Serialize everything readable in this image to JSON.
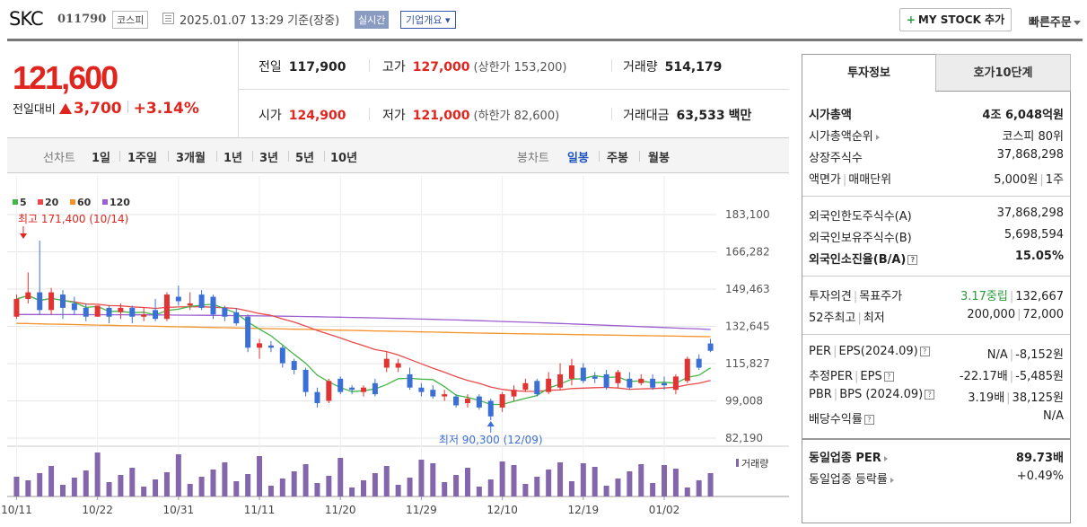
{
  "header": {
    "name": "SKC",
    "code": "011790",
    "market": "코스피",
    "date": "2025.01.07 13:29  기준(장중)",
    "realtime": "실시간",
    "company_overview": "기업개요 ▾",
    "my_stock": "MY STOCK 추가",
    "my_stock_plus": "+",
    "quick_order": "빠른주문"
  },
  "price": {
    "current": "121,600",
    "change_label": "전일대비",
    "change_value": "3,700",
    "change_pct": "+3.14%"
  },
  "stats": {
    "prev_close_label": "전일",
    "prev_close": "117,900",
    "high_label": "고가",
    "high": "127,000",
    "upper_limit": "(상한가 153,200)",
    "volume_label": "거래량",
    "volume": "514,179",
    "open_label": "시가",
    "open": "124,900",
    "low_label": "저가",
    "low": "121,000",
    "lower_limit": "(하한가 82,600)",
    "amount_label": "거래대금",
    "amount": "63,533",
    "amount_unit": "백만"
  },
  "period_bar": {
    "line_label": "선차트",
    "line_periods": [
      "1일",
      "1주일",
      "3개월",
      "1년",
      "3년",
      "5년",
      "10년"
    ],
    "candle_label": "봉차트",
    "candle_periods": [
      "일봉",
      "주봉",
      "월봉"
    ],
    "active_candle": "일봉"
  },
  "chart_data": {
    "type": "candlestick",
    "legend": [
      {
        "name": "5",
        "color": "#44b548"
      },
      {
        "name": "20",
        "color": "#e84a4a"
      },
      {
        "name": "60",
        "color": "#f5932a"
      },
      {
        "name": "120",
        "color": "#9d5fd0"
      }
    ],
    "y_ticks": [
      "183,100",
      "166,282",
      "149,463",
      "132,645",
      "115,827",
      "99,008",
      "82,190"
    ],
    "ylim": [
      82190,
      183100
    ],
    "x_ticks": [
      "10/11",
      "10/22",
      "10/31",
      "11/11",
      "11/20",
      "11/29",
      "12/10",
      "12/19",
      "01/02"
    ],
    "high_annotation": "최고 171,400 (10/14)",
    "low_annotation": "최저 90,300 (12/09)",
    "volume_label": "거래량",
    "candles": [
      [
        137000,
        145000,
        136000,
        147000
      ],
      [
        145000,
        148000,
        143000,
        157000
      ],
      [
        148000,
        140000,
        138000,
        171400
      ],
      [
        140000,
        148000,
        138000,
        150000
      ],
      [
        147000,
        141000,
        136000,
        149000
      ],
      [
        143000,
        140000,
        138000,
        146000
      ],
      [
        141000,
        137000,
        135000,
        143000
      ],
      [
        137000,
        142000
      ],
      [
        141000,
        137000,
        134000,
        142000
      ],
      [
        139000,
        141000,
        136000,
        143000
      ],
      [
        141000,
        137000,
        134000,
        142000
      ],
      [
        137000,
        138000,
        135000,
        141000
      ],
      [
        140000,
        136000,
        135000,
        145000
      ],
      [
        136000,
        147000,
        135000,
        148000
      ],
      [
        146000,
        144000,
        142000,
        151000
      ],
      [
        142000,
        143000,
        140000,
        148000
      ],
      [
        147000,
        141000,
        140000,
        149000
      ],
      [
        146000,
        138000,
        136000,
        147000
      ],
      [
        141000,
        137000,
        135000,
        142000
      ],
      [
        139000,
        134000,
        133000,
        141000
      ],
      [
        137000,
        123000,
        121000,
        138000
      ],
      [
        123000,
        125000,
        118000,
        127000
      ],
      [
        124000,
        123000,
        121000,
        126000
      ],
      [
        123000,
        116000,
        114000,
        124000
      ],
      [
        117000,
        113000,
        111000,
        118000
      ],
      [
        113000,
        103000,
        101000,
        114000
      ],
      [
        103000,
        98000,
        96000,
        105000
      ],
      [
        99000,
        108000,
        98000,
        109000
      ],
      [
        109000,
        103000,
        102000,
        110000
      ],
      [
        105000,
        104000,
        102000,
        106000
      ],
      [
        103000,
        105000,
        101000,
        106000
      ],
      [
        107000,
        102000,
        101000,
        109000
      ],
      [
        114000,
        118000,
        112000,
        121000
      ],
      [
        114000,
        116000,
        112000,
        118000
      ],
      [
        111000,
        105000,
        104000,
        114000
      ],
      [
        105000,
        103000,
        101000,
        107000
      ],
      [
        104000,
        101000,
        100000,
        106000
      ],
      [
        101000,
        102000,
        99000,
        104000
      ],
      [
        101000,
        97000,
        96000,
        102000
      ],
      [
        98000,
        100000,
        96000,
        102000
      ],
      [
        101000,
        96000,
        95000,
        102000
      ],
      [
        99000,
        92000,
        90300,
        100000
      ],
      [
        96000,
        102000,
        94000,
        103000
      ],
      [
        101000,
        104000,
        99000,
        106000
      ],
      [
        104000,
        107000,
        103000,
        109000
      ],
      [
        108000,
        102000,
        101000,
        109000
      ],
      [
        103000,
        109000,
        102000,
        112000
      ],
      [
        105000,
        111000,
        104000,
        116000
      ],
      [
        109000,
        115000,
        106000,
        118000
      ],
      [
        114000,
        108000,
        107000,
        116000
      ],
      [
        110000,
        109000,
        107000,
        112000
      ],
      [
        111000,
        105000,
        104000,
        113000
      ],
      [
        107000,
        112000,
        105000,
        113000
      ],
      [
        109000,
        105000,
        104000,
        112000
      ],
      [
        107000,
        109000,
        106000,
        111000
      ],
      [
        109000,
        105000,
        104000,
        111000
      ],
      [
        107000,
        106000,
        104000,
        110000
      ],
      [
        104000,
        110000,
        102000,
        111000
      ],
      [
        108000,
        118000,
        107000,
        119000
      ],
      [
        118000,
        114000,
        113000,
        120000
      ],
      [
        124900,
        121600,
        121000,
        127000
      ]
    ]
  },
  "right_panel": {
    "tab_info": "투자정보",
    "tab_orderbook": "호가10단계",
    "g1": [
      {
        "k": "시가총액",
        "v": "4조 6,048억원"
      },
      {
        "k": "시가총액순위",
        "v": "코스피 80위"
      },
      {
        "k": "상장주식수",
        "v": "37,868,298"
      },
      {
        "k1": "액면가",
        "k2": "매매단위",
        "v1": "5,000원",
        "v2": "1주"
      }
    ],
    "g2": [
      {
        "k": "외국인한도주식수(A)",
        "v": "37,868,298"
      },
      {
        "k": "외국인보유주식수(B)",
        "v": "5,698,594"
      },
      {
        "k": "외국인소진율(B/A)",
        "v": "15.05%"
      }
    ],
    "g3": [
      {
        "k1": "투자의견",
        "k2": "목표주가",
        "v1": "3.17중립",
        "v2": "132,667"
      },
      {
        "k1": "52주최고",
        "k2": "최저",
        "v1": "200,000",
        "v2": "72,000"
      }
    ],
    "g4": [
      {
        "k1": "PER",
        "k2": "EPS(2024.09)",
        "v1": "N/A",
        "v2": "-8,152원"
      },
      {
        "k1": "추정PER",
        "k2": "EPS",
        "v1": "-22.17배",
        "v2": "-5,485원"
      },
      {
        "k1": "PBR",
        "k2": "BPS (2024.09)",
        "v1": "3.19배",
        "v2": "38,125원"
      },
      {
        "k": "배당수익률",
        "v": "N/A"
      }
    ],
    "g5": [
      {
        "k": "동일업종 PER",
        "v": "89.73배"
      },
      {
        "k": "동일업종 등락률",
        "v": "+0.49%"
      }
    ]
  }
}
